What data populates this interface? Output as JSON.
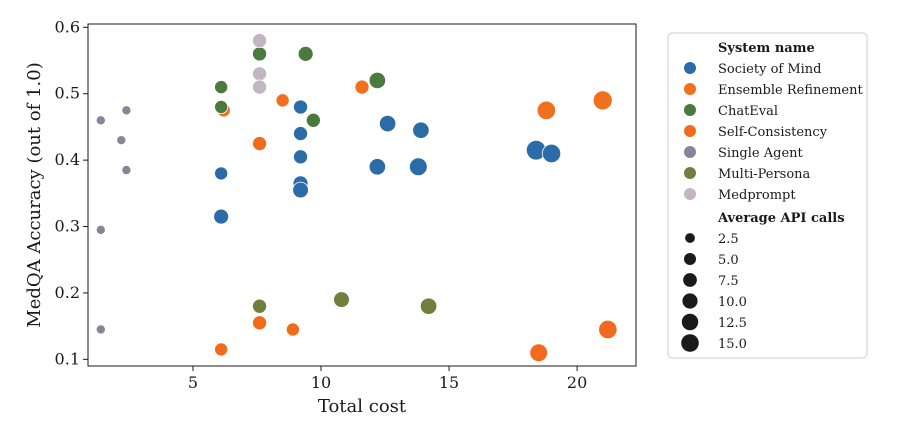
{
  "chart_data": {
    "type": "scatter",
    "xlabel": "Total cost",
    "ylabel": "MedQA Accuracy (out of 1.0)",
    "xlim": [
      0.9,
      22.3
    ],
    "ylim": [
      0.09,
      0.605
    ],
    "xticks": [
      "5",
      "10",
      "15",
      "20"
    ],
    "xtick_values": [
      5,
      10,
      15,
      20
    ],
    "yticks": [
      "0.1",
      "0.2",
      "0.3",
      "0.4",
      "0.5",
      "0.6"
    ],
    "ytick_values": [
      0.1,
      0.2,
      0.3,
      0.4,
      0.5,
      0.6
    ],
    "grid": false,
    "legend_position": "right, outside plot",
    "color_legend_title": "System name",
    "size_legend_title": "Average API calls",
    "size_legend": [
      {
        "label": "2.5",
        "value": 2.5
      },
      {
        "label": "5.0",
        "value": 5.0
      },
      {
        "label": "7.5",
        "value": 7.5
      },
      {
        "label": "10.0",
        "value": 10.0
      },
      {
        "label": "12.5",
        "value": 12.5
      },
      {
        "label": "15.0",
        "value": 15.0
      }
    ],
    "series": [
      {
        "name": "Society of Mind",
        "color": "#2b6ca8",
        "points": [
          {
            "x": 6.1,
            "y": 0.38,
            "calls": 4
          },
          {
            "x": 6.1,
            "y": 0.315,
            "calls": 6
          },
          {
            "x": 9.2,
            "y": 0.48,
            "calls": 5
          },
          {
            "x": 9.2,
            "y": 0.44,
            "calls": 5
          },
          {
            "x": 9.2,
            "y": 0.405,
            "calls": 5
          },
          {
            "x": 9.2,
            "y": 0.365,
            "calls": 6
          },
          {
            "x": 9.2,
            "y": 0.355,
            "calls": 7
          },
          {
            "x": 12.2,
            "y": 0.39,
            "calls": 8
          },
          {
            "x": 12.6,
            "y": 0.455,
            "calls": 8
          },
          {
            "x": 13.8,
            "y": 0.39,
            "calls": 10
          },
          {
            "x": 13.9,
            "y": 0.445,
            "calls": 8
          },
          {
            "x": 18.4,
            "y": 0.415,
            "calls": 13
          },
          {
            "x": 19.0,
            "y": 0.41,
            "calls": 11
          }
        ]
      },
      {
        "name": "Ensemble Refinement",
        "color": "#f07020",
        "points": [
          {
            "x": 6.2,
            "y": 0.475,
            "calls": 4
          },
          {
            "x": 8.5,
            "y": 0.49,
            "calls": 4
          },
          {
            "x": 11.6,
            "y": 0.51,
            "calls": 5
          },
          {
            "x": 18.8,
            "y": 0.475,
            "calls": 11
          },
          {
            "x": 21.0,
            "y": 0.49,
            "calls": 12
          }
        ]
      },
      {
        "name": "ChatEval",
        "color": "#4a7a3d",
        "points": [
          {
            "x": 6.1,
            "y": 0.51,
            "calls": 4
          },
          {
            "x": 6.1,
            "y": 0.48,
            "calls": 4
          },
          {
            "x": 7.6,
            "y": 0.56,
            "calls": 5
          },
          {
            "x": 9.4,
            "y": 0.56,
            "calls": 6
          },
          {
            "x": 9.7,
            "y": 0.46,
            "calls": 5
          },
          {
            "x": 12.2,
            "y": 0.52,
            "calls": 8
          }
        ]
      },
      {
        "name": "Self-Consistency",
        "color": "#f26b1d",
        "points": [
          {
            "x": 6.1,
            "y": 0.115,
            "calls": 4
          },
          {
            "x": 7.6,
            "y": 0.425,
            "calls": 5
          },
          {
            "x": 7.6,
            "y": 0.155,
            "calls": 5
          },
          {
            "x": 8.9,
            "y": 0.145,
            "calls": 4
          },
          {
            "x": 18.5,
            "y": 0.11,
            "calls": 10
          },
          {
            "x": 21.2,
            "y": 0.145,
            "calls": 11
          }
        ]
      },
      {
        "name": "Single Agent",
        "color": "#8a8499",
        "points": [
          {
            "x": 1.4,
            "y": 0.46,
            "calls": 1
          },
          {
            "x": 2.2,
            "y": 0.43,
            "calls": 1
          },
          {
            "x": 2.4,
            "y": 0.475,
            "calls": 1
          },
          {
            "x": 2.4,
            "y": 0.385,
            "calls": 1
          },
          {
            "x": 1.4,
            "y": 0.295,
            "calls": 1
          },
          {
            "x": 1.4,
            "y": 0.145,
            "calls": 1
          }
        ]
      },
      {
        "name": "Multi-Persona",
        "color": "#6e7f3e",
        "points": [
          {
            "x": 7.6,
            "y": 0.18,
            "calls": 5
          },
          {
            "x": 10.8,
            "y": 0.19,
            "calls": 7
          },
          {
            "x": 14.2,
            "y": 0.18,
            "calls": 8
          }
        ]
      },
      {
        "name": "Medprompt",
        "color": "#c4b5c2",
        "points": [
          {
            "x": 7.6,
            "y": 0.58,
            "calls": 5
          },
          {
            "x": 7.6,
            "y": 0.53,
            "calls": 5
          },
          {
            "x": 7.6,
            "y": 0.51,
            "calls": 5
          }
        ]
      }
    ]
  }
}
